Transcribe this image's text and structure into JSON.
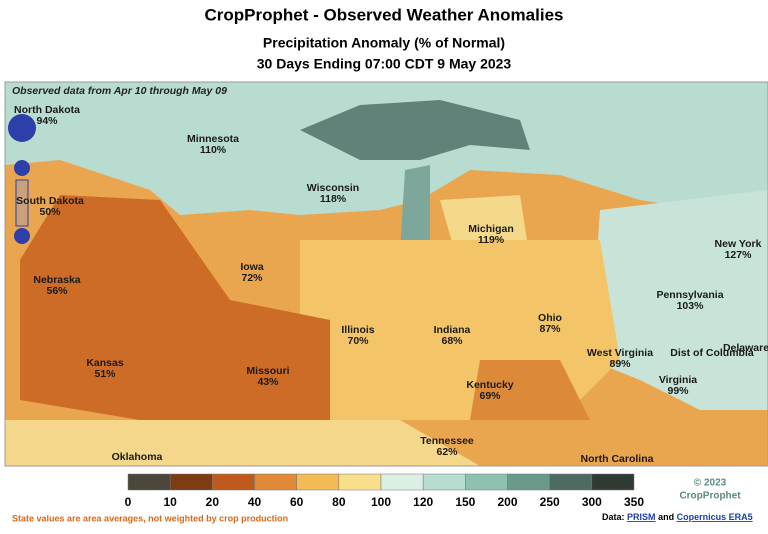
{
  "header": {
    "title": "CropProphet - Observed Weather Anomalies",
    "subtitle": "Precipitation Anomaly (% of Normal)",
    "period": "30 Days Ending 07:00 CDT 9 May 2023"
  },
  "map": {
    "note": "Observed data from Apr 10 through May 09",
    "states": [
      {
        "name": "North Dakota",
        "value": "94%"
      },
      {
        "name": "Minnesota",
        "value": "110%"
      },
      {
        "name": "Wisconsin",
        "value": "118%"
      },
      {
        "name": "Michigan",
        "value": "119%"
      },
      {
        "name": "South Dakota",
        "value": "50%"
      },
      {
        "name": "Iowa",
        "value": "72%"
      },
      {
        "name": "Nebraska",
        "value": "56%"
      },
      {
        "name": "New York",
        "value": "127%"
      },
      {
        "name": "Pennsylvania",
        "value": "103%"
      },
      {
        "name": "Illinois",
        "value": "70%"
      },
      {
        "name": "Indiana",
        "value": "68%"
      },
      {
        "name": "Ohio",
        "value": "87%"
      },
      {
        "name": "Kansas",
        "value": "51%"
      },
      {
        "name": "Missouri",
        "value": "43%"
      },
      {
        "name": "West Virginia",
        "value": "89%"
      },
      {
        "name": "Kentucky",
        "value": "69%"
      },
      {
        "name": "Virginia",
        "value": "99%"
      },
      {
        "name": "Tennessee",
        "value": "62%"
      }
    ],
    "unlabeled_states": [
      "Dist of Columbia",
      "Delaware",
      "Oklahoma",
      "North Carolina"
    ]
  },
  "legend": {
    "ticks": [
      "0",
      "10",
      "20",
      "40",
      "60",
      "80",
      "100",
      "120",
      "150",
      "200",
      "250",
      "300",
      "350"
    ],
    "colors": [
      "#4a463c",
      "#7d3c14",
      "#c05a1c",
      "#e08a38",
      "#f2bb55",
      "#f7df8c",
      "#dcefe4",
      "#b7dcd0",
      "#8fc1b2",
      "#6b9a8d",
      "#4d6b62",
      "#2f3a33"
    ]
  },
  "footer": {
    "copyright": "© 2023",
    "brand": "CropProphet",
    "disclaimer": "State values are area averages, not weighted by crop production",
    "source_prefix": "Data:",
    "source_1": "PRISM",
    "source_and": "and",
    "source_2": "Copernicus ERA5"
  }
}
